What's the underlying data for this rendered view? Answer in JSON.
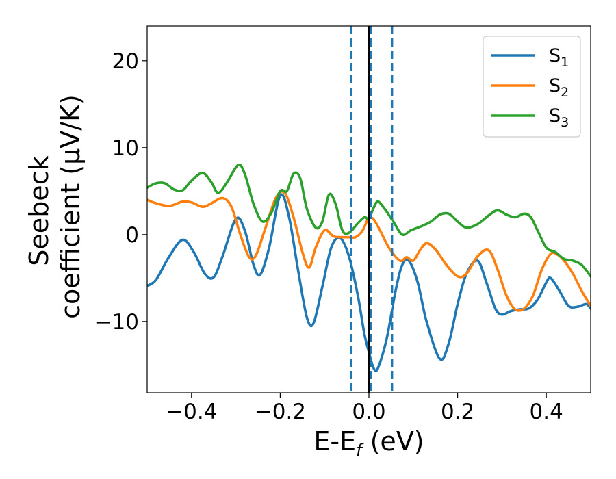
{
  "chart_data": {
    "type": "line",
    "xlabel": "E-E",
    "xlabel_sub": "f",
    "xlabel_unit": " (eV)",
    "ylabel_line1": "Seebeck",
    "ylabel_line2": "coefficient  (μV/K)",
    "xlim": [
      -0.5,
      0.5
    ],
    "ylim": [
      -18.2,
      24.0
    ],
    "xticks": [
      -0.4,
      -0.2,
      0.0,
      0.2,
      0.4
    ],
    "xtick_labels": [
      "−0.4",
      "−0.2",
      "0.0",
      "0.2",
      "0.4"
    ],
    "yticks": [
      -10,
      0,
      10,
      20
    ],
    "ytick_labels": [
      "−10",
      "0",
      "10",
      "20"
    ],
    "grid": false,
    "legend_position": "top-right",
    "vlines": [
      {
        "x": -0.04,
        "style": "dashed",
        "color": "#1f77b4"
      },
      {
        "x": 0.005,
        "style": "dashed",
        "color": "#1f77b4"
      },
      {
        "x": 0.052,
        "style": "dashed",
        "color": "#1f77b4"
      },
      {
        "x": 0.0,
        "style": "solid",
        "color": "#000000"
      }
    ],
    "series": [
      {
        "name": "S",
        "name_sub": "1",
        "color": "#1f77b4",
        "points": [
          [
            -0.5,
            -5.9
          ],
          [
            -0.48,
            -5.2
          ],
          [
            -0.45,
            -2.5
          ],
          [
            -0.42,
            -0.6
          ],
          [
            -0.395,
            -2.0
          ],
          [
            -0.37,
            -4.5
          ],
          [
            -0.35,
            -4.9
          ],
          [
            -0.33,
            -2.5
          ],
          [
            -0.3,
            1.8
          ],
          [
            -0.28,
            0.5
          ],
          [
            -0.26,
            -3.5
          ],
          [
            -0.245,
            -4.6
          ],
          [
            -0.225,
            -1.5
          ],
          [
            -0.2,
            4.5
          ],
          [
            -0.18,
            2.0
          ],
          [
            -0.16,
            -4.0
          ],
          [
            -0.14,
            -9.5
          ],
          [
            -0.125,
            -10.2
          ],
          [
            -0.105,
            -6.0
          ],
          [
            -0.085,
            -1.5
          ],
          [
            -0.065,
            -0.4
          ],
          [
            -0.045,
            -2.5
          ],
          [
            -0.025,
            -7.0
          ],
          [
            -0.01,
            -11.5
          ],
          [
            0.0,
            -13.5
          ],
          [
            0.01,
            -15.3
          ],
          [
            0.02,
            -15.4
          ],
          [
            0.04,
            -12.0
          ],
          [
            0.06,
            -6.5
          ],
          [
            0.075,
            -3.5
          ],
          [
            0.09,
            -3.0
          ],
          [
            0.11,
            -5.5
          ],
          [
            0.13,
            -10.0
          ],
          [
            0.16,
            -14.3
          ],
          [
            0.18,
            -12.5
          ],
          [
            0.2,
            -8.0
          ],
          [
            0.22,
            -4.5
          ],
          [
            0.245,
            -3.0
          ],
          [
            0.265,
            -5.5
          ],
          [
            0.285,
            -8.5
          ],
          [
            0.3,
            -9.2
          ],
          [
            0.32,
            -8.8
          ],
          [
            0.34,
            -8.6
          ],
          [
            0.36,
            -8.5
          ],
          [
            0.38,
            -7.5
          ],
          [
            0.4,
            -5.5
          ],
          [
            0.41,
            -5.0
          ],
          [
            0.43,
            -6.5
          ],
          [
            0.45,
            -8.2
          ],
          [
            0.47,
            -8.3
          ],
          [
            0.49,
            -8.0
          ],
          [
            0.5,
            -8.5
          ]
        ]
      },
      {
        "name": "S",
        "name_sub": "2",
        "color": "#ff7f0e",
        "points": [
          [
            -0.5,
            4.0
          ],
          [
            -0.48,
            3.6
          ],
          [
            -0.45,
            3.3
          ],
          [
            -0.42,
            3.8
          ],
          [
            -0.4,
            3.7
          ],
          [
            -0.375,
            3.2
          ],
          [
            -0.355,
            3.6
          ],
          [
            -0.33,
            4.2
          ],
          [
            -0.31,
            3.2
          ],
          [
            -0.29,
            0.0
          ],
          [
            -0.27,
            -2.6
          ],
          [
            -0.255,
            -2.4
          ],
          [
            -0.235,
            0.5
          ],
          [
            -0.21,
            4.2
          ],
          [
            -0.19,
            4.8
          ],
          [
            -0.17,
            2.0
          ],
          [
            -0.15,
            -2.0
          ],
          [
            -0.135,
            -3.8
          ],
          [
            -0.12,
            -1.5
          ],
          [
            -0.1,
            0.5
          ],
          [
            -0.08,
            -0.2
          ],
          [
            -0.06,
            -0.3
          ],
          [
            -0.045,
            -0.3
          ],
          [
            -0.03,
            -0.3
          ],
          [
            -0.015,
            0.4
          ],
          [
            -0.005,
            1.5
          ],
          [
            0.0,
            1.9
          ],
          [
            0.01,
            1.8
          ],
          [
            0.025,
            0.5
          ],
          [
            0.045,
            -1.5
          ],
          [
            0.07,
            -3.0
          ],
          [
            0.085,
            -2.6
          ],
          [
            0.1,
            -3.0
          ],
          [
            0.115,
            -1.8
          ],
          [
            0.13,
            -1.0
          ],
          [
            0.15,
            -1.7
          ],
          [
            0.175,
            -3.5
          ],
          [
            0.2,
            -4.8
          ],
          [
            0.22,
            -4.5
          ],
          [
            0.245,
            -2.5
          ],
          [
            0.27,
            -1.8
          ],
          [
            0.29,
            -4.0
          ],
          [
            0.31,
            -7.0
          ],
          [
            0.33,
            -8.6
          ],
          [
            0.35,
            -8.5
          ],
          [
            0.37,
            -7.0
          ],
          [
            0.39,
            -4.0
          ],
          [
            0.41,
            -2.2
          ],
          [
            0.425,
            -2.3
          ],
          [
            0.44,
            -3.0
          ],
          [
            0.46,
            -4.5
          ],
          [
            0.48,
            -6.5
          ],
          [
            0.5,
            -8.2
          ]
        ]
      },
      {
        "name": "S",
        "name_sub": "3",
        "color": "#2ca02c",
        "points": [
          [
            -0.5,
            5.4
          ],
          [
            -0.48,
            5.9
          ],
          [
            -0.46,
            5.9
          ],
          [
            -0.44,
            5.2
          ],
          [
            -0.42,
            5.1
          ],
          [
            -0.4,
            6.2
          ],
          [
            -0.375,
            7.1
          ],
          [
            -0.355,
            6.0
          ],
          [
            -0.34,
            4.8
          ],
          [
            -0.32,
            6.0
          ],
          [
            -0.295,
            8.0
          ],
          [
            -0.28,
            7.0
          ],
          [
            -0.26,
            3.5
          ],
          [
            -0.24,
            1.5
          ],
          [
            -0.22,
            2.5
          ],
          [
            -0.2,
            5.0
          ],
          [
            -0.185,
            5.0
          ],
          [
            -0.17,
            7.0
          ],
          [
            -0.155,
            6.5
          ],
          [
            -0.14,
            3.0
          ],
          [
            -0.12,
            0.8
          ],
          [
            -0.105,
            1.5
          ],
          [
            -0.09,
            4.6
          ],
          [
            -0.075,
            3.5
          ],
          [
            -0.06,
            0.5
          ],
          [
            -0.045,
            0.2
          ],
          [
            -0.025,
            1.3
          ],
          [
            -0.01,
            2.0
          ],
          [
            0.0,
            1.8
          ],
          [
            0.01,
            3.0
          ],
          [
            0.02,
            3.8
          ],
          [
            0.035,
            3.0
          ],
          [
            0.055,
            1.5
          ],
          [
            0.075,
            0.0
          ],
          [
            0.095,
            0.5
          ],
          [
            0.12,
            1.0
          ],
          [
            0.14,
            1.5
          ],
          [
            0.16,
            2.3
          ],
          [
            0.18,
            2.4
          ],
          [
            0.2,
            1.5
          ],
          [
            0.22,
            0.8
          ],
          [
            0.245,
            1.2
          ],
          [
            0.27,
            2.2
          ],
          [
            0.29,
            2.8
          ],
          [
            0.31,
            2.3
          ],
          [
            0.33,
            2.0
          ],
          [
            0.35,
            2.4
          ],
          [
            0.365,
            2.0
          ],
          [
            0.38,
            0.5
          ],
          [
            0.4,
            -1.5
          ],
          [
            0.42,
            -2.0
          ],
          [
            0.44,
            -2.8
          ],
          [
            0.46,
            -3.0
          ],
          [
            0.48,
            -3.5
          ],
          [
            0.5,
            -4.8
          ]
        ]
      }
    ]
  }
}
